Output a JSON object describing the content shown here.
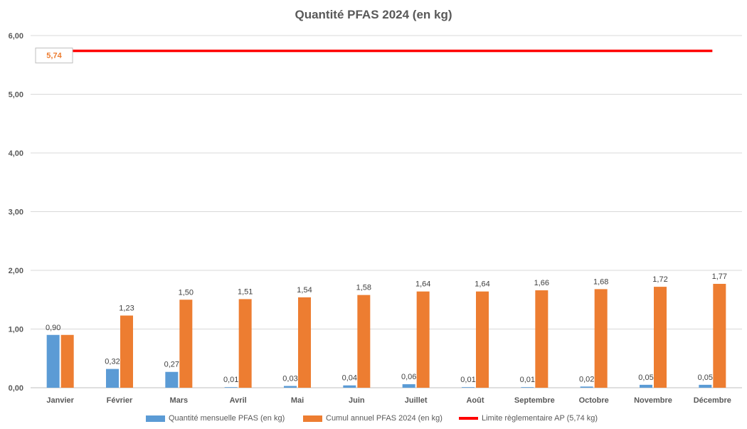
{
  "chart_data": {
    "type": "bar",
    "title": "Quantité PFAS 2024 (en kg)",
    "categories": [
      "Janvier",
      "Février",
      "Mars",
      "Avril",
      "Mai",
      "Juin",
      "Juillet",
      "Août",
      "Septembre",
      "Octobre",
      "Novembre",
      "Décembre"
    ],
    "series": [
      {
        "name": "Quantité mensuelle PFAS (en kg)",
        "color": "#5b9bd5",
        "values": [
          0.9,
          0.32,
          0.27,
          0.01,
          0.03,
          0.04,
          0.06,
          0.01,
          0.01,
          0.02,
          0.05,
          0.05
        ],
        "labels": [
          "0,90",
          "0,32",
          "0,27",
          "0,01",
          "0,03",
          "0,04",
          "0,06",
          "0,01",
          "0,01",
          "0,02",
          "0,05",
          "0,05"
        ]
      },
      {
        "name": "Cumul annuel PFAS 2024 (en kg)",
        "color": "#ed7d31",
        "values": [
          0.9,
          1.23,
          1.5,
          1.51,
          1.54,
          1.58,
          1.64,
          1.64,
          1.66,
          1.68,
          1.72,
          1.77
        ],
        "labels": [
          "",
          "1,23",
          "1,50",
          "1,51",
          "1,54",
          "1,58",
          "1,64",
          "1,64",
          "1,66",
          "1,68",
          "1,72",
          "1,77"
        ]
      }
    ],
    "limit_line": {
      "name": "Limite règlementaire AP (5,74 kg)",
      "color": "#ff0000",
      "value": 5.74,
      "label": "5,74",
      "label_color": "#ed7d31"
    },
    "ylim": [
      0,
      6
    ],
    "yticks": [
      0,
      1,
      2,
      3,
      4,
      5,
      6
    ],
    "ytick_labels": [
      "0,00",
      "1,00",
      "2,00",
      "3,00",
      "4,00",
      "5,00",
      "6,00"
    ],
    "xlabel": "",
    "ylabel": "",
    "grid": true,
    "legend_position": "bottom"
  }
}
